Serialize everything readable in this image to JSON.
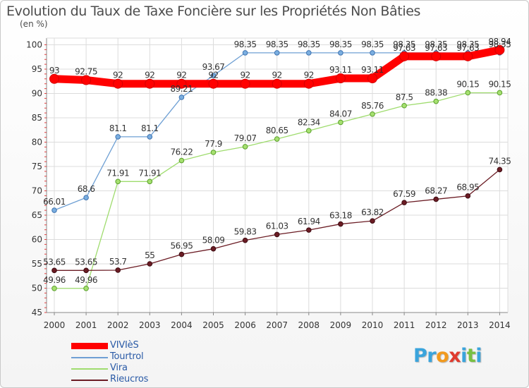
{
  "title": "Evolution du Taux de Taxe Foncière sur les Propriétés Non Bâties",
  "unit": "(en %)",
  "logo": {
    "letters": [
      {
        "char": "P",
        "color": "#3aa4dc"
      },
      {
        "char": "r",
        "color": "#3aa4dc"
      },
      {
        "char": "o",
        "color": "#f29a1e"
      },
      {
        "char": "x",
        "color": "#e03a2e"
      },
      {
        "char": "i",
        "color": "#3aa4dc"
      },
      {
        "char": "t",
        "color": "#78c043"
      },
      {
        "char": "i",
        "color": "#3aa4dc"
      }
    ]
  },
  "chart_data": {
    "type": "line",
    "title": "Evolution du Taux de Taxe Foncière sur les Propriétés Non Bâties",
    "ylabel": "(en %)",
    "xlabel": "",
    "ylim": [
      45,
      100
    ],
    "yticks": [
      45,
      50,
      55,
      60,
      65,
      70,
      75,
      80,
      85,
      90,
      95,
      100
    ],
    "grid": true,
    "legend_position": "bottom-left",
    "categories": [
      "2000",
      "2001",
      "2002",
      "2003",
      "2004",
      "2005",
      "2006",
      "2007",
      "2008",
      "2009",
      "2010",
      "2011",
      "2012",
      "2013",
      "2014"
    ],
    "series": [
      {
        "name": "VIVIèS",
        "color": "#ff0000",
        "values": [
          93,
          92.75,
          92,
          92,
          92,
          92,
          92,
          92,
          92,
          93.11,
          93.11,
          97.63,
          97.63,
          97.63,
          98.94
        ],
        "labels": [
          "93",
          "92.75",
          "92",
          "92",
          "92",
          "92",
          "92",
          "92",
          "92",
          "93.11",
          "93.11",
          "97.63",
          "97.63",
          "97.63",
          "98.94"
        ]
      },
      {
        "name": "Tourtrol",
        "color": "#6fa0d4",
        "values": [
          66.01,
          68.6,
          81.1,
          81.1,
          89.21,
          93.67,
          98.35,
          98.35,
          98.35,
          98.35,
          98.35,
          98.35,
          98.35,
          98.35,
          98.35
        ],
        "labels": [
          "66.01",
          "68.6",
          "81.1",
          "81.1",
          "89.21",
          "93.67",
          "98.35",
          "98.35",
          "98.35",
          "98.35",
          "98.35",
          "98.35",
          "98.35",
          "98.35",
          "98.35"
        ]
      },
      {
        "name": "Vira",
        "color": "#9fdc6e",
        "values": [
          49.96,
          49.96,
          71.91,
          71.91,
          76.22,
          77.9,
          79.07,
          80.65,
          82.34,
          84.07,
          85.76,
          87.5,
          88.38,
          90.15,
          90.15
        ],
        "labels": [
          "49.96",
          "49.96",
          "71.91",
          "71.91",
          "76.22",
          "77.9",
          "79.07",
          "80.65",
          "82.34",
          "84.07",
          "85.76",
          "87.5",
          "88.38",
          "90.15",
          "90.15"
        ]
      },
      {
        "name": "Rieucros",
        "color": "#6b1c24",
        "values": [
          53.65,
          53.65,
          53.7,
          55,
          56.95,
          58.09,
          59.83,
          61.03,
          61.94,
          63.18,
          63.82,
          67.59,
          68.27,
          68.95,
          74.35
        ],
        "labels": [
          "53.65",
          "53.65",
          "53.7",
          "55",
          "56.95",
          "58.09",
          "59.83",
          "61.03",
          "61.94",
          "63.18",
          "63.82",
          "67.59",
          "68.27",
          "68.95",
          "74.35"
        ]
      }
    ]
  }
}
